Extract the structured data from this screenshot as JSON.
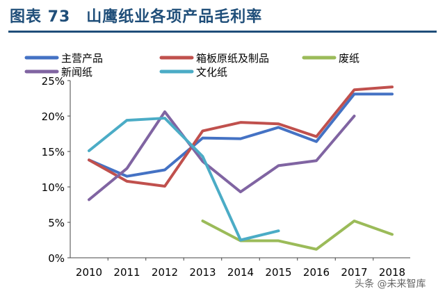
{
  "header": {
    "title": "图表 73　山鹰纸业各项产品毛利率"
  },
  "watermark": "头条 @未来智库",
  "chart_data": {
    "type": "line",
    "title": "山鹰纸业各项产品毛利率",
    "categories": [
      "2010",
      "2011",
      "2012",
      "2013",
      "2014",
      "2015",
      "2016",
      "2017",
      "2018"
    ],
    "ylim": [
      0,
      25
    ],
    "yticks": [
      0,
      5,
      10,
      15,
      20,
      25
    ],
    "ytick_labels": [
      "0%",
      "5%",
      "10%",
      "15%",
      "20%",
      "25%"
    ],
    "xlabel": "",
    "ylabel": "",
    "legend_position": "top",
    "series": [
      {
        "name": "主营产品",
        "color": "#4472c4",
        "values": [
          13.8,
          11.5,
          12.4,
          16.9,
          16.8,
          18.4,
          16.4,
          23.1,
          23.1
        ]
      },
      {
        "name": "箱板原纸及制品",
        "color": "#c0504d",
        "values": [
          13.8,
          10.8,
          10.1,
          17.9,
          19.1,
          18.9,
          17.1,
          23.7,
          24.1
        ]
      },
      {
        "name": "废纸",
        "color": "#9bbb59",
        "values": [
          null,
          null,
          null,
          5.2,
          2.4,
          2.4,
          1.2,
          5.2,
          3.3
        ]
      },
      {
        "name": "新闻纸",
        "color": "#8064a2",
        "values": [
          8.2,
          12.6,
          20.6,
          13.6,
          9.3,
          13.0,
          13.7,
          20.0,
          null
        ]
      },
      {
        "name": "文化纸",
        "color": "#4bacc6",
        "values": [
          15.1,
          19.4,
          19.7,
          14.3,
          2.5,
          3.8,
          null,
          null,
          null
        ]
      }
    ]
  }
}
